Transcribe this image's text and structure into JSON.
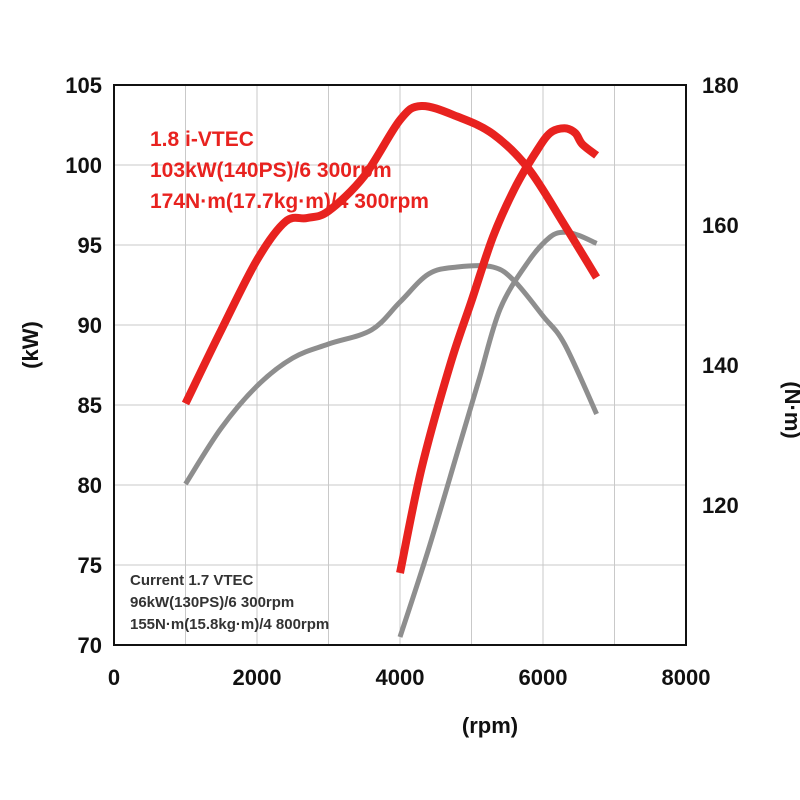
{
  "chart_data": {
    "type": "line",
    "x_axis": {
      "label": "(rpm)",
      "min": 0,
      "max": 8000,
      "ticks": [
        0,
        2000,
        4000,
        6000,
        8000
      ],
      "tick_labels": [
        "0",
        "2000",
        "4000",
        "6000",
        "8000"
      ]
    },
    "y_left": {
      "label": "(kW)",
      "min": 70,
      "max": 105,
      "ticks": [
        70,
        75,
        80,
        85,
        90,
        95,
        100,
        105
      ],
      "tick_labels": [
        "70",
        "75",
        "80",
        "85",
        "90",
        "95",
        "100",
        "105"
      ]
    },
    "y_right": {
      "label": "(N·m)",
      "min": 100,
      "max": 180,
      "ticks": [
        120,
        140,
        160,
        180
      ],
      "tick_labels": [
        "120",
        "140",
        "160",
        "180"
      ]
    },
    "grid": true,
    "annotations": {
      "new_engine": [
        "1.8 i-VTEC",
        "103kW(140PS)/6 300rpm",
        "174N·m(17.7kg·m)/4 300rpm"
      ],
      "current_engine": [
        "Current  1.7 VTEC",
        "96kW(130PS)/6 300rpm",
        "155N·m(15.8kg·m)/4 800rpm"
      ]
    },
    "series": [
      {
        "name": "1.8 i-VTEC power",
        "axis": "left",
        "color": "#e8221f",
        "x": [
          4000,
          4300,
          4700,
          5000,
          5300,
          5600,
          5900,
          6100,
          6300,
          6450,
          6550,
          6750
        ],
        "y": [
          74.5,
          81,
          87.5,
          91.5,
          95.5,
          98.5,
          100.8,
          102,
          102.3,
          102,
          101.3,
          100.6
        ]
      },
      {
        "name": "1.8 i-VTEC torque",
        "axis": "right",
        "color": "#e8221f",
        "x": [
          1000,
          1500,
          2000,
          2400,
          2700,
          3000,
          3500,
          4000,
          4300,
          4800,
          5300,
          5800,
          6300,
          6750
        ],
        "y": [
          134.5,
          145,
          155,
          160.5,
          161,
          162,
          167,
          175,
          177,
          175.5,
          173,
          168,
          160,
          152.5
        ]
      },
      {
        "name": "Current 1.7 VTEC power",
        "axis": "left",
        "color": "#8e8e8e",
        "x": [
          4000,
          4400,
          4800,
          5100,
          5400,
          5800,
          6100,
          6300,
          6500,
          6750
        ],
        "y": [
          70.5,
          76,
          82,
          86.5,
          91,
          94,
          95.5,
          95.8,
          95.6,
          95.1
        ]
      },
      {
        "name": "Current 1.7 VTEC torque",
        "axis": "right",
        "color": "#8e8e8e",
        "x": [
          1000,
          1500,
          2000,
          2500,
          3000,
          3600,
          4000,
          4400,
          4800,
          5300,
          5600,
          6000,
          6300,
          6750
        ],
        "y": [
          123,
          131,
          137,
          141,
          143,
          145,
          149,
          153,
          154,
          154,
          152,
          147,
          143,
          133
        ]
      }
    ]
  }
}
